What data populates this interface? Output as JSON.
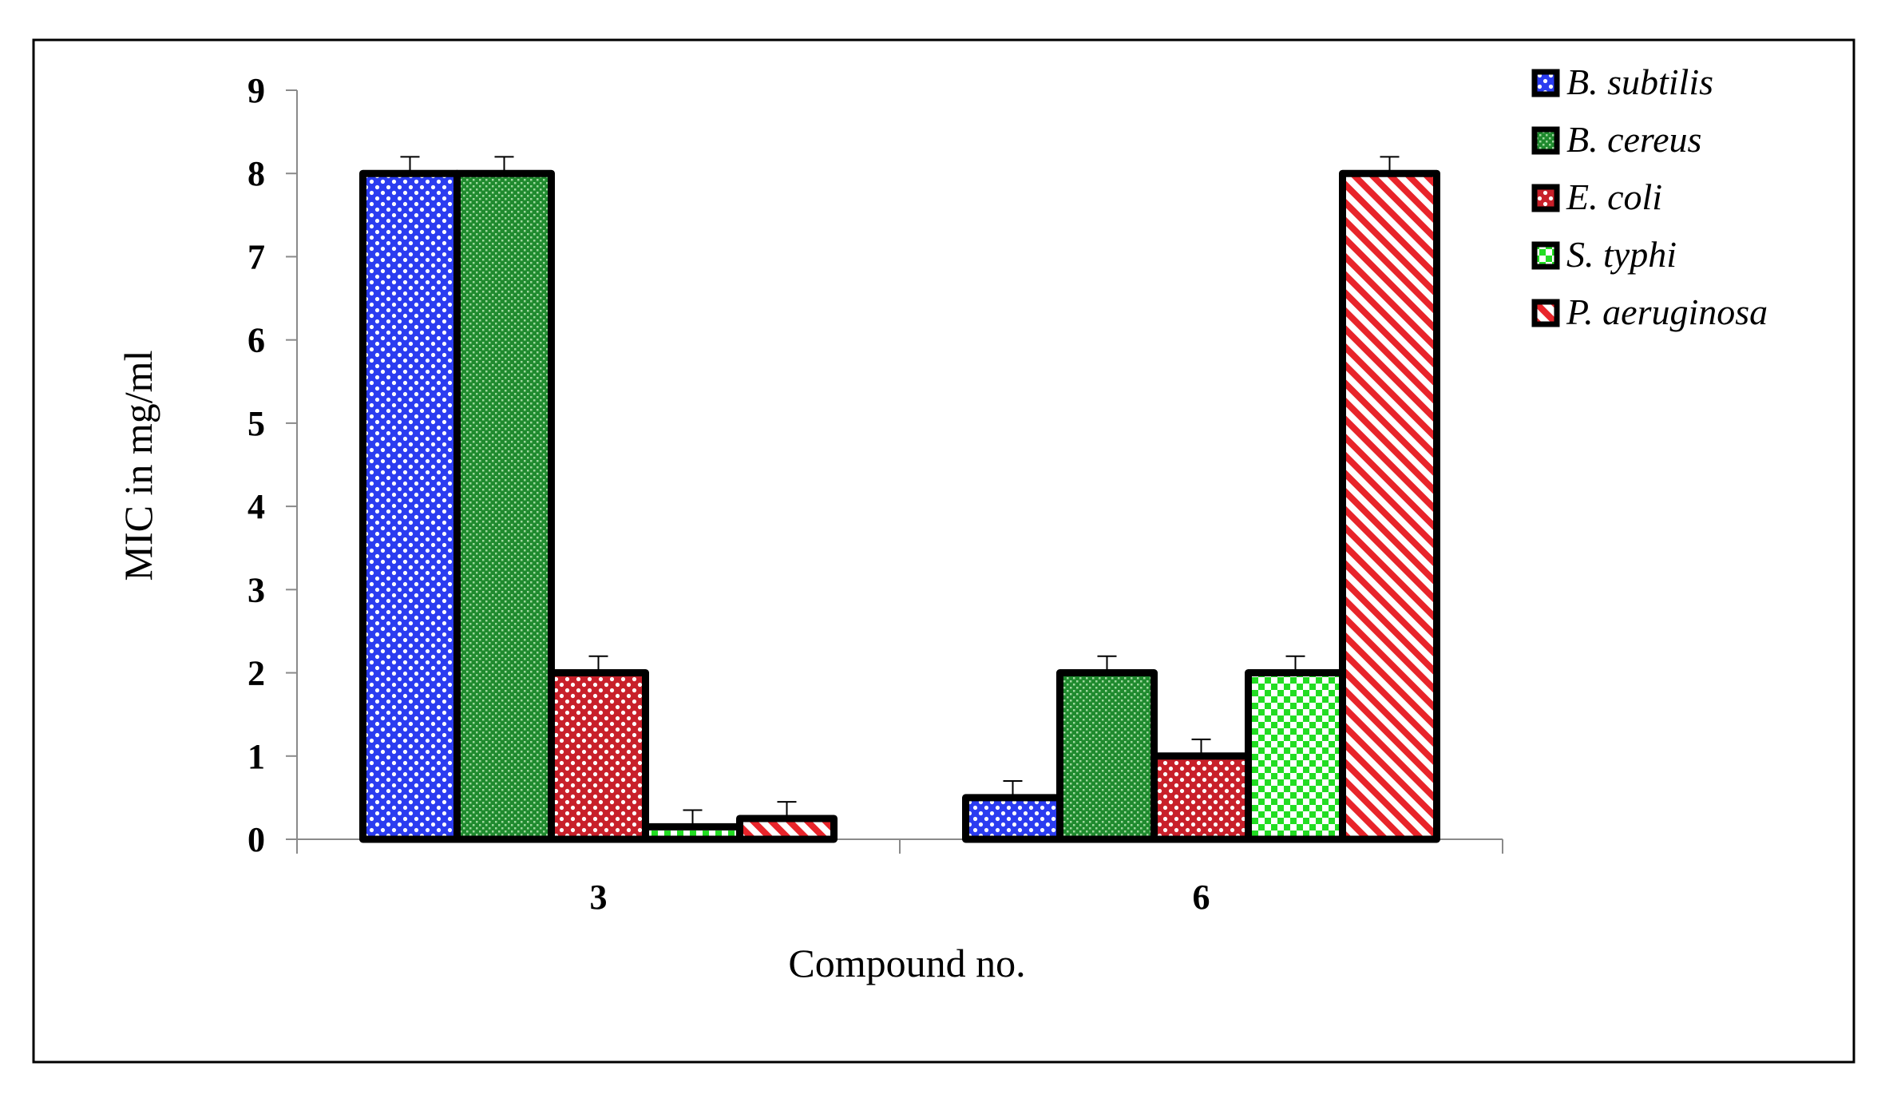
{
  "chart_data": {
    "type": "bar",
    "title": "",
    "xlabel": "Compound no.",
    "ylabel": "MIC in mg/ml",
    "ylim": [
      0,
      9
    ],
    "yticks": [
      "0",
      "1",
      "2",
      "3",
      "4",
      "5",
      "6",
      "7",
      "8",
      "9"
    ],
    "categories": [
      "3",
      "6"
    ],
    "legend_position": "top-right",
    "grid": false,
    "series": [
      {
        "name": "B. subtilis",
        "values": [
          8,
          0.5
        ],
        "errors": [
          0.2,
          0.2
        ],
        "color": "#2b3cf0",
        "pattern": "dots"
      },
      {
        "name": "B. cereus",
        "values": [
          8,
          2
        ],
        "errors": [
          0.2,
          0.2
        ],
        "color": "#1f8a2e",
        "pattern": "fine-check"
      },
      {
        "name": "E. coli",
        "values": [
          2,
          1
        ],
        "errors": [
          0.2,
          0.2
        ],
        "color": "#c8202a",
        "pattern": "dots"
      },
      {
        "name": "S. typhi",
        "values": [
          0.15,
          2
        ],
        "errors": [
          0.2,
          0.2
        ],
        "color": "#22dd22",
        "pattern": "check"
      },
      {
        "name": "P. aeruginosa",
        "values": [
          0.25,
          8
        ],
        "errors": [
          0.2,
          0.2
        ],
        "color": "#e8242a",
        "pattern": "diagonal"
      }
    ]
  }
}
